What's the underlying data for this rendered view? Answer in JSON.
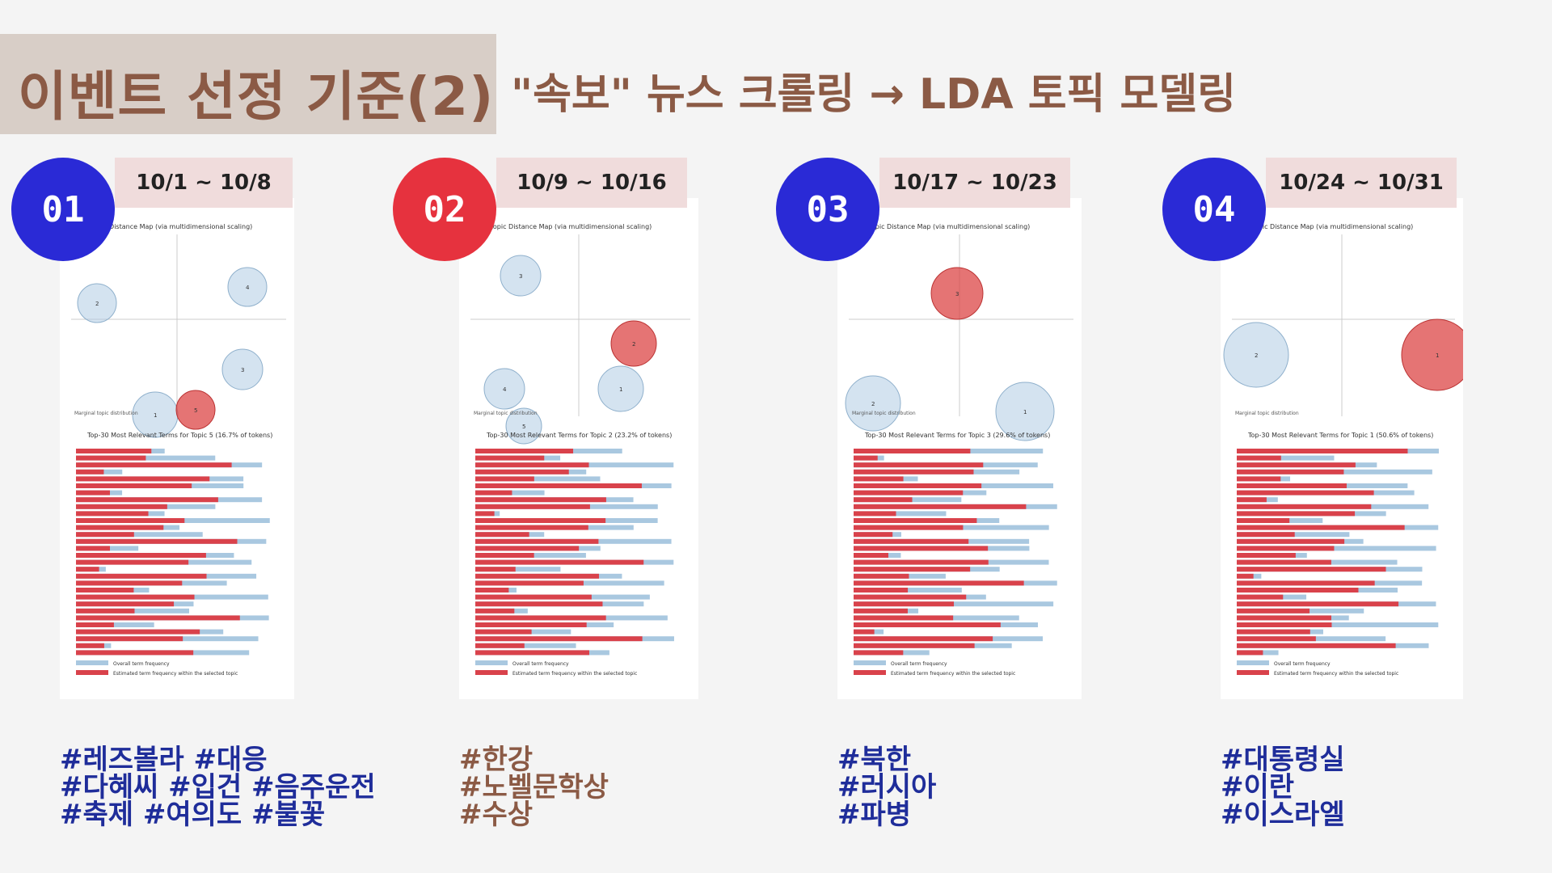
{
  "header": {
    "title": "이벤트 선정 기준(2)",
    "subtitle": "\"속보\" 뉴스 크롤링 → LDA 토픽 모델링"
  },
  "colors": {
    "blue": "#2a2ad6",
    "red": "#e6323e",
    "brown": "#8b5a45",
    "navy": "#1f2d9a"
  },
  "panels": [
    {
      "number": "01",
      "date": "10/1 ~ 10/8",
      "map_title": "Intertopic Distance Map (via multidimensional scaling)",
      "bar_title": "Top-30 Most Relevant Terms for Topic 5 (16.7% of tokens)",
      "legend_overall": "Overall term frequency",
      "legend_estimated": "Estimated term frequency within the selected topic",
      "marginal": "Marginal topic distribution",
      "tags": [
        "#레즈볼라 #대응",
        "#다혜씨 #입건 #음주운전",
        "#축제 #여의도 #불꽃"
      ]
    },
    {
      "number": "02",
      "date": "10/9 ~ 10/16",
      "map_title": "Intertopic Distance Map (via multidimensional scaling)",
      "bar_title": "Top-30 Most Relevant Terms for Topic 2 (23.2% of tokens)",
      "legend_overall": "Overall term frequency",
      "legend_estimated": "Estimated term frequency within the selected topic",
      "marginal": "Marginal topic distribution",
      "tags": [
        "#한강",
        "#노벨문학상",
        "#수상"
      ]
    },
    {
      "number": "03",
      "date": "10/17 ~ 10/23",
      "map_title": "Intertopic Distance Map (via multidimensional scaling)",
      "bar_title": "Top-30 Most Relevant Terms for Topic 3 (29.6% of tokens)",
      "legend_overall": "Overall term frequency",
      "legend_estimated": "Estimated term frequency within the selected topic",
      "marginal": "Marginal topic distribution",
      "tags": [
        "#북한",
        "#러시아",
        "#파병"
      ]
    },
    {
      "number": "04",
      "date": "10/24 ~ 10/31",
      "map_title": "Intertopic Distance Map (via multidimensional scaling)",
      "bar_title": "Top-30 Most Relevant Terms for Topic 1 (50.6% of tokens)",
      "legend_overall": "Overall term frequency",
      "legend_estimated": "Estimated term frequency within the selected topic",
      "marginal": "Marginal topic distribution",
      "tags": [
        "#대통령실",
        "#이란",
        "#이스라엘"
      ]
    }
  ]
}
